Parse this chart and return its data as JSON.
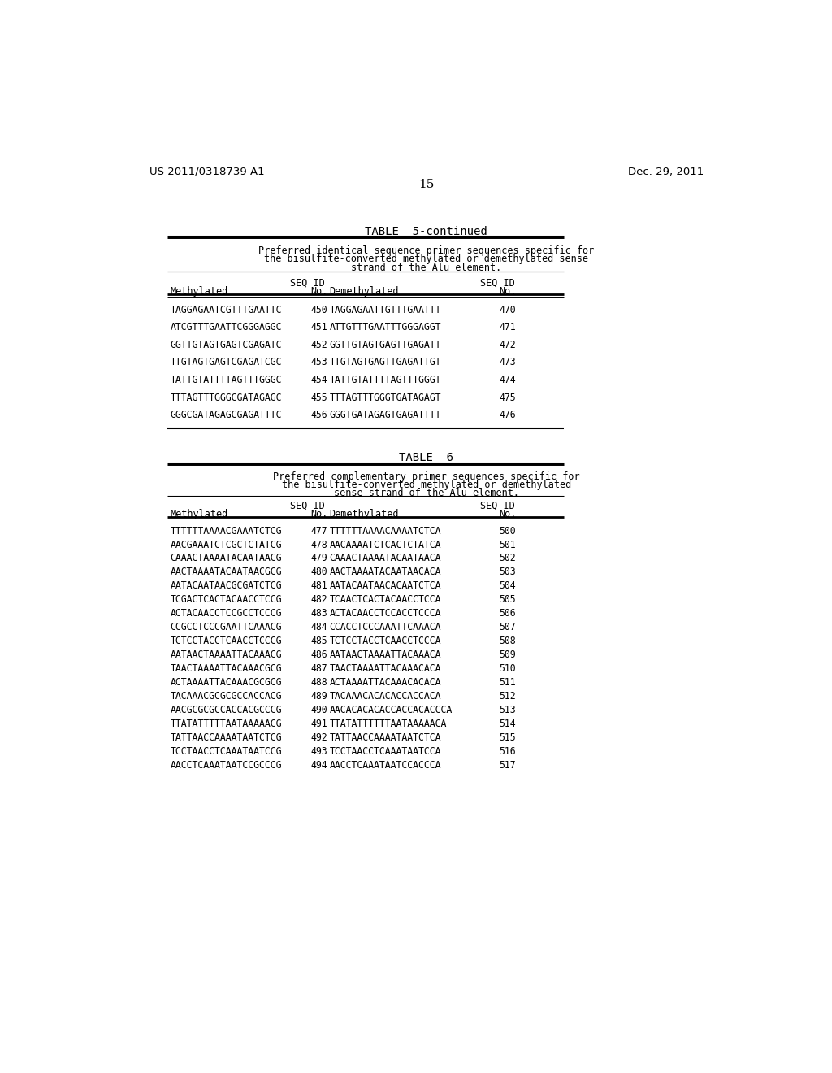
{
  "header_left": "US 2011/0318739 A1",
  "header_right": "Dec. 29, 2011",
  "page_number": "15",
  "table5_title": "TABLE  5-continued",
  "table5_desc1": "Preferred identical sequence primer sequences specific for",
  "table5_desc2": "the bisulfite-converted methylated or demethylated sense",
  "table5_desc3": "strand of the Alu element.",
  "table6_title": "TABLE  6",
  "table6_desc1": "Preferred complementary primer sequences specific for",
  "table6_desc2": "the bisulfite-converted methylated or demethylated",
  "table6_desc3": "sense strand of the Alu element.",
  "table5_data": [
    [
      "TAGGAGAATCGTTTGAATTC",
      "450",
      "TAGGAGAATTGTTTGAATTT",
      "470"
    ],
    [
      "ATCGTTTGAATTCGGGAGGC",
      "451",
      "ATTGTTTGAATTTGGGAGGT",
      "471"
    ],
    [
      "GGTTGTAGTGAGTCGAGATC",
      "452",
      "GGTTGTAGTGAGTTGAGATT",
      "472"
    ],
    [
      "TTGTAGTGAGTCGAGATCGC",
      "453",
      "TTGTAGTGAGTTGAGATTGT",
      "473"
    ],
    [
      "TATTGTATTTTAGTTTGGGC",
      "454",
      "TATTGTATTTTAGTTTGGGT",
      "474"
    ],
    [
      "TTTAGTTTGGGCGATAGAGC",
      "455",
      "TTTAGTTTGGGTGATAGAGT",
      "475"
    ],
    [
      "GGGCGATAGAGCGAGATTTC",
      "456",
      "GGGTGATAGAGTGAGATTTT",
      "476"
    ]
  ],
  "table6_data": [
    [
      "TTTTTTAAAACGAAATCTCG",
      "477",
      "TTTTTTAAAACAAAATCTCA",
      "500"
    ],
    [
      "AACGAAATCTCGCTCTATCG",
      "478",
      "AACAAAATCTCACTCTATCA",
      "501"
    ],
    [
      "CAAACTAAAATACAATAACG",
      "479",
      "CAAACTAAAATACAATAACA",
      "502"
    ],
    [
      "AACTAAAATACAATAACGCG",
      "480",
      "AACTAAAATACAATAACACA",
      "503"
    ],
    [
      "AATACAATAACGCGATCTCG",
      "481",
      "AATACAATAACACAATCTCA",
      "504"
    ],
    [
      "TCGACTCACTACAACCTCCG",
      "482",
      "TCAACTCACTACAACCTCCA",
      "505"
    ],
    [
      "ACTACAACCTCCGCCTCCCG",
      "483",
      "ACTACAACCTCCACCTCCCA",
      "506"
    ],
    [
      "CCGCCTCCCGAATTCAAACG",
      "484",
      "CCACCTCCCAAATTCAAACA",
      "507"
    ],
    [
      "TCTCCTACCTCAACCTCCCG",
      "485",
      "TCTCCTACCTCAACCTCCCA",
      "508"
    ],
    [
      "AATAACTAAAATTACAAACG",
      "486",
      "AATAACTAAAATTACAAACA",
      "509"
    ],
    [
      "TAACTAAAATTACAAACGCG",
      "487",
      "TAACTAAAATTACAAACACA",
      "510"
    ],
    [
      "ACTAAAATTACAAACGCGCG",
      "488",
      "ACTAAAATTACAAACACACA",
      "511"
    ],
    [
      "TACAAACGCGCGCCACCACG",
      "489",
      "TACAAACACACACCACCACA",
      "512"
    ],
    [
      "AACGCGCGCCACCACGCCCG",
      "490",
      "AACACACACACCACCACACCCA",
      "513"
    ],
    [
      "TTATATTTTTAATAAAAACG",
      "491",
      "TTATATTTTTTAATAAAAACA",
      "514"
    ],
    [
      "TATTAACCAAAATAATCTCG",
      "492",
      "TATTAACCAAAATAATCTCA",
      "515"
    ],
    [
      "TCCTAACCTCAAATAATCCG",
      "493",
      "TCCTAACCTCAAATAATCCA",
      "516"
    ],
    [
      "AACCTCAAATAATCCGCCCG",
      "494",
      "AACCTCAAATAATCCACCCA",
      "517"
    ]
  ],
  "bg_color": "#ffffff",
  "text_color": "#000000"
}
